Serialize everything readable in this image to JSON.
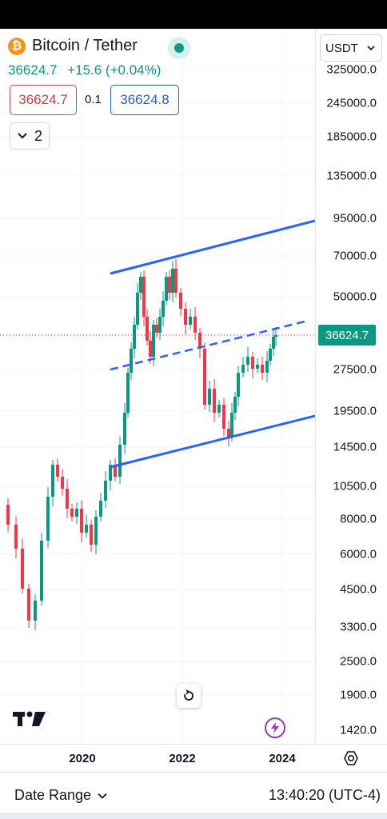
{
  "header": {
    "title": "Bitcoin / Tether",
    "last_price": "36624.7",
    "change": "+15.6 (+0.04%)",
    "bid": "36624.7",
    "spread": "0.1",
    "ask": "36624.8",
    "indicator_count": "2"
  },
  "currency": "USDT",
  "current_price_tag": "36624.7",
  "price_axis": [
    "325000.0",
    "245000.0",
    "185000.0",
    "135000.0",
    "95000.0",
    "70000.0",
    "50000.0",
    "36624.7",
    "27500.0",
    "19500.0",
    "14500.0",
    "10500.0",
    "8000.0",
    "6000.0",
    "4500.0",
    "3300.0",
    "2500.0",
    "1900.0",
    "1420.0"
  ],
  "time_axis": [
    "2020",
    "2022",
    "2024"
  ],
  "footer": {
    "date_range": "Date Range",
    "clock": "13:40:20 (UTC-4)"
  },
  "colors": {
    "up": "#089981",
    "down": "#f23645",
    "trendline": "#2962ff",
    "accent": "#089981"
  },
  "icons": {
    "symbol": "bitcoin-icon",
    "live": "live-dot-icon",
    "dropdown": "chevron-down-icon",
    "reset": "reset-icon",
    "settings": "gear-icon",
    "logo": "tradingview-logo",
    "alert": "bolt-icon"
  }
}
